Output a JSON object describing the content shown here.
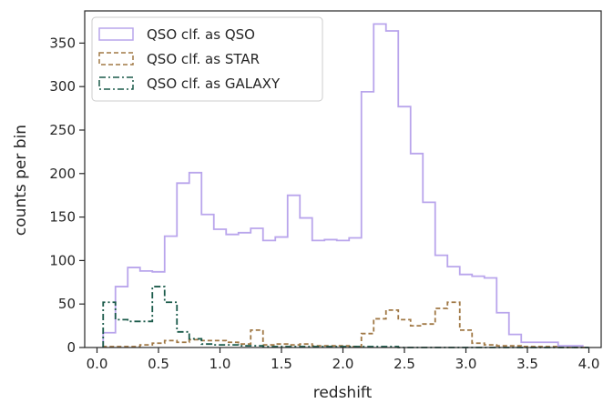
{
  "chart_data": {
    "type": "histogram",
    "xlabel": "redshift",
    "ylabel": "counts per bin",
    "xlim": [
      -0.1,
      4.1
    ],
    "ylim": [
      0,
      387
    ],
    "xticks": [
      "0.0",
      "0.5",
      "1.0",
      "1.5",
      "2.0",
      "2.5",
      "3.0",
      "3.5",
      "4.0"
    ],
    "yticks": [
      "0",
      "50",
      "100",
      "150",
      "200",
      "250",
      "300",
      "350"
    ],
    "grid": false,
    "legend_position": "top-left",
    "bin_edges": [
      0.05,
      0.1,
      0.15,
      0.2,
      0.25,
      0.3,
      0.35,
      0.4,
      0.45,
      0.5,
      0.55,
      0.6,
      0.65,
      0.7,
      0.75,
      0.8,
      0.85,
      0.9,
      0.95,
      1.0,
      1.05,
      1.1,
      1.15,
      1.2,
      1.25,
      1.3,
      1.35,
      1.4,
      1.45,
      1.5,
      1.55,
      1.6,
      1.65,
      1.7,
      1.75,
      1.8,
      1.85,
      1.9,
      1.95,
      2.0,
      2.05,
      2.1,
      2.15,
      2.2,
      2.25,
      2.3,
      2.35,
      2.4,
      2.45,
      2.5,
      2.55,
      2.6,
      2.65,
      2.7,
      2.75,
      2.8,
      2.85,
      2.9,
      2.95,
      3.0,
      3.05,
      3.1,
      3.15,
      3.2,
      3.25,
      3.3,
      3.35,
      3.4,
      3.45,
      3.5,
      3.55,
      3.6,
      3.65,
      3.7,
      3.75,
      3.8,
      3.85,
      3.9,
      3.95,
      4.0
    ],
    "series": [
      {
        "name": "QSO clf. as QSO",
        "color": "#b9a5ec",
        "style": "solid",
        "values": [
          17,
          17,
          70,
          70,
          92,
          92,
          88,
          88,
          87,
          87,
          128,
          128,
          189,
          189,
          201,
          201,
          153,
          153,
          136,
          136,
          130,
          130,
          132,
          132,
          137,
          137,
          123,
          123,
          127,
          127,
          175,
          175,
          149,
          149,
          123,
          123,
          124,
          124,
          123,
          123,
          126,
          126,
          294,
          294,
          372,
          372,
          364,
          364,
          277,
          277,
          223,
          223,
          167,
          167,
          106,
          106,
          93,
          93,
          84,
          84,
          82,
          82,
          80,
          80,
          40,
          40,
          15,
          15,
          6,
          6,
          6,
          6,
          6,
          6,
          2,
          2,
          2,
          2,
          0
        ]
      },
      {
        "name": "QSO clf. as STAR",
        "color": "#a07845",
        "style": "dashed",
        "values": [
          1,
          1,
          1,
          1,
          1,
          1,
          3,
          3,
          5,
          5,
          8,
          8,
          6,
          6,
          9,
          9,
          8,
          8,
          8,
          8,
          6,
          6,
          4,
          4,
          20,
          20,
          3,
          3,
          4,
          4,
          3,
          3,
          4,
          4,
          2,
          2,
          2,
          2,
          2,
          2,
          1,
          1,
          16,
          16,
          33,
          33,
          43,
          43,
          32,
          32,
          25,
          25,
          27,
          27,
          45,
          45,
          52,
          52,
          20,
          20,
          5,
          5,
          3,
          3,
          2,
          2,
          2,
          2,
          1,
          1,
          1,
          1,
          1,
          1,
          0,
          0,
          0,
          0,
          0
        ]
      },
      {
        "name": "QSO clf. as GALAXY",
        "color": "#1a5a4a",
        "style": "dashdot",
        "values": [
          52,
          52,
          32,
          32,
          30,
          30,
          30,
          30,
          70,
          70,
          52,
          52,
          18,
          18,
          10,
          10,
          4,
          4,
          3,
          3,
          3,
          3,
          2,
          2,
          2,
          2,
          1,
          1,
          1,
          1,
          1,
          1,
          1,
          1,
          1,
          1,
          1,
          1,
          1,
          1,
          1,
          1,
          1,
          1,
          1,
          1,
          1,
          1,
          0,
          0,
          0,
          0,
          0,
          0,
          0,
          0,
          0,
          0,
          0,
          0,
          0,
          0,
          0,
          0,
          0,
          0,
          0,
          0,
          0,
          0,
          0,
          0,
          0,
          0,
          0,
          0,
          0,
          0,
          0
        ]
      }
    ]
  }
}
